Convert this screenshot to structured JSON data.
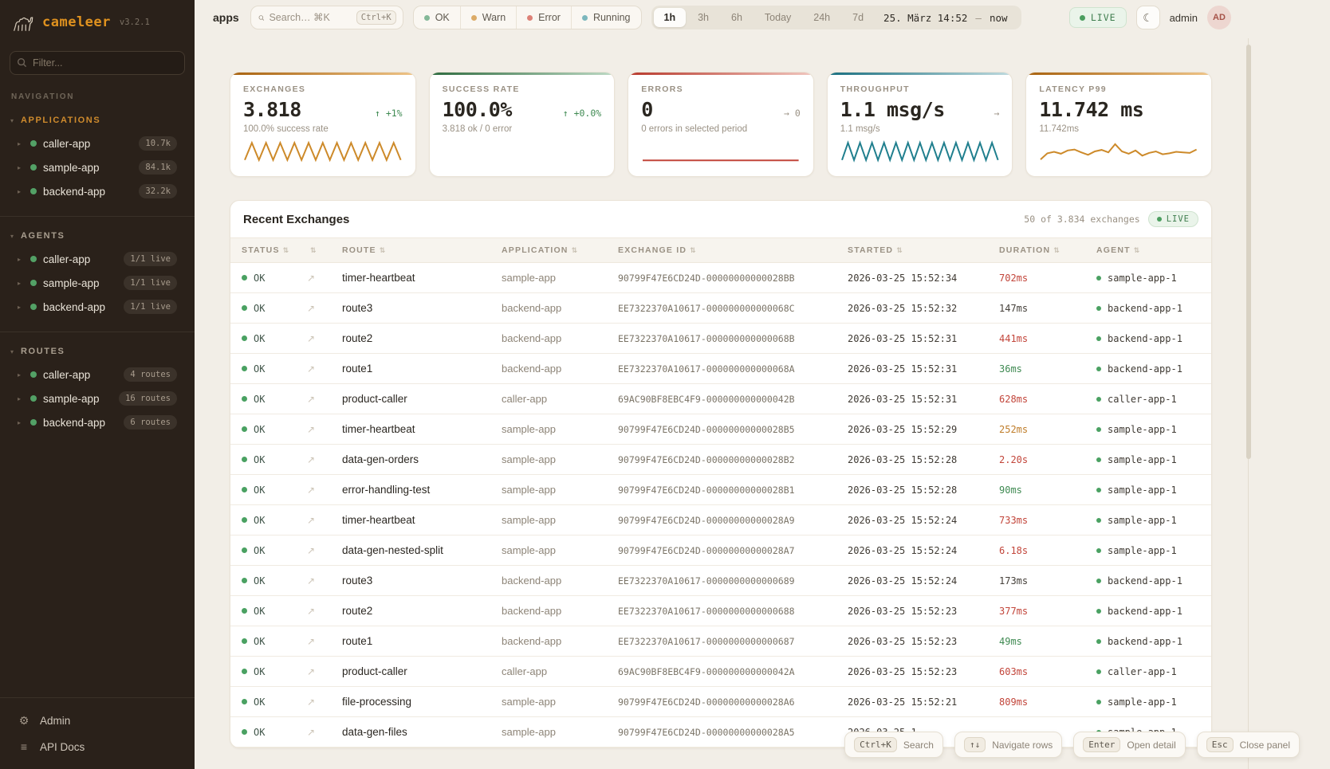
{
  "app": {
    "name": "cameleer",
    "version": "v3.2.1"
  },
  "sidebar": {
    "filter_placeholder": "Filter...",
    "navigation_label": "NAVIGATION",
    "sections": [
      {
        "label": "APPLICATIONS",
        "accent": true,
        "items": [
          {
            "name": "caller-app",
            "badge": "10.7k"
          },
          {
            "name": "sample-app",
            "badge": "84.1k"
          },
          {
            "name": "backend-app",
            "badge": "32.2k"
          }
        ]
      },
      {
        "label": "AGENTS",
        "accent": false,
        "items": [
          {
            "name": "caller-app",
            "badge": "1/1 live"
          },
          {
            "name": "sample-app",
            "badge": "1/1 live"
          },
          {
            "name": "backend-app",
            "badge": "1/1 live"
          }
        ]
      },
      {
        "label": "ROUTES",
        "accent": false,
        "items": [
          {
            "name": "caller-app",
            "badge": "4 routes"
          },
          {
            "name": "sample-app",
            "badge": "16 routes"
          },
          {
            "name": "backend-app",
            "badge": "6 routes"
          }
        ]
      }
    ],
    "footer": [
      {
        "label": "Admin",
        "icon": "gear"
      },
      {
        "label": "API Docs",
        "icon": "menu"
      }
    ]
  },
  "topbar": {
    "breadcrumb": "apps",
    "search": {
      "placeholder": "Search… ⌘K",
      "kbd": "Ctrl+K"
    },
    "status_filters": [
      {
        "label": "OK",
        "color": "#84b898"
      },
      {
        "label": "Warn",
        "color": "#dcab67"
      },
      {
        "label": "Error",
        "color": "#dd8177"
      },
      {
        "label": "Running",
        "color": "#7cb7bd"
      }
    ],
    "ranges": [
      "1h",
      "3h",
      "6h",
      "Today",
      "24h",
      "7d"
    ],
    "active_range": "1h",
    "range_start": "25. März 14:52",
    "range_sep": "—",
    "range_end": "now",
    "live_label": "LIVE",
    "user": "admin",
    "avatar_initials": "AD"
  },
  "cards": [
    {
      "label": "EXCHANGES",
      "value": "3.818",
      "delta": "↑ +1%",
      "delta_tone": "up",
      "subtitle": "100.0% success rate",
      "accent_from": "#a8620f",
      "accent_to": "#eec488",
      "spark_color": "#cd8a2a",
      "spark": [
        0.95,
        0.05,
        0.95,
        0.05,
        0.95,
        0.05,
        0.95,
        0.05,
        0.95,
        0.05,
        0.95,
        0.05,
        0.95,
        0.05,
        0.95,
        0.05,
        0.95,
        0.05,
        0.95,
        0.05,
        0.95,
        0.05,
        0.95
      ]
    },
    {
      "label": "SUCCESS RATE",
      "value": "100.0%",
      "delta": "↑ +0.0%",
      "delta_tone": "up",
      "subtitle": "3.818 ok / 0 error",
      "accent_from": "#2e6b3f",
      "accent_to": "#bdd9c4",
      "spark_color": "",
      "spark": []
    },
    {
      "label": "ERRORS",
      "value": "0",
      "delta": "→ 0",
      "delta_tone": "flat",
      "subtitle": "0 errors in selected period",
      "accent_from": "#b8392c",
      "accent_to": "#f0c6be",
      "spark_color": "#c2453a",
      "spark": [
        0.97,
        0.97
      ]
    },
    {
      "label": "THROUGHPUT",
      "value": "1.1 msg/s",
      "delta": "→",
      "delta_tone": "flat",
      "subtitle": "1.1 msg/s",
      "accent_from": "#196f80",
      "accent_to": "#bfdade",
      "spark_color": "#207f8e",
      "spark": [
        0.95,
        0.05,
        0.95,
        0.05,
        0.95,
        0.05,
        0.95,
        0.05,
        0.95,
        0.05,
        0.95,
        0.05,
        0.95,
        0.05,
        0.95,
        0.05,
        0.95,
        0.05,
        0.95,
        0.05,
        0.95,
        0.05,
        0.95,
        0.05,
        0.95,
        0.05,
        0.95
      ]
    },
    {
      "label": "LATENCY P99",
      "value": "11.742 ms",
      "delta": "",
      "delta_tone": "flat",
      "subtitle": "11.742ms",
      "accent_from": "#a8620f",
      "accent_to": "#eec488",
      "spark_color": "#cd8a2a",
      "spark": [
        0.92,
        0.6,
        0.52,
        0.62,
        0.45,
        0.4,
        0.55,
        0.68,
        0.5,
        0.42,
        0.55,
        0.12,
        0.5,
        0.62,
        0.45,
        0.72,
        0.58,
        0.5,
        0.65,
        0.6,
        0.52,
        0.55,
        0.58,
        0.4
      ]
    }
  ],
  "table": {
    "title": "Recent Exchanges",
    "count_text": "50 of 3.834 exchanges",
    "live_label": "LIVE",
    "columns": [
      "STATUS",
      "",
      "ROUTE",
      "APPLICATION",
      "EXCHANGE ID",
      "STARTED",
      "DURATION",
      "AGENT"
    ],
    "rows": [
      {
        "status": "OK",
        "route": "timer-heartbeat",
        "app": "sample-app",
        "id": "90799F47E6CD24D-00000000000028BB",
        "started": "2026-03-25 15:52:34",
        "duration": "702ms",
        "duration_tone": "red",
        "agent": "sample-app-1"
      },
      {
        "status": "OK",
        "route": "route3",
        "app": "backend-app",
        "id": "EE7322370A10617-000000000000068C",
        "started": "2026-03-25 15:52:32",
        "duration": "147ms",
        "duration_tone": "neutral",
        "agent": "backend-app-1"
      },
      {
        "status": "OK",
        "route": "route2",
        "app": "backend-app",
        "id": "EE7322370A10617-000000000000068B",
        "started": "2026-03-25 15:52:31",
        "duration": "441ms",
        "duration_tone": "red",
        "agent": "backend-app-1"
      },
      {
        "status": "OK",
        "route": "route1",
        "app": "backend-app",
        "id": "EE7322370A10617-000000000000068A",
        "started": "2026-03-25 15:52:31",
        "duration": "36ms",
        "duration_tone": "green",
        "agent": "backend-app-1"
      },
      {
        "status": "OK",
        "route": "product-caller",
        "app": "caller-app",
        "id": "69AC90BF8EBC4F9-000000000000042B",
        "started": "2026-03-25 15:52:31",
        "duration": "628ms",
        "duration_tone": "red",
        "agent": "caller-app-1"
      },
      {
        "status": "OK",
        "route": "timer-heartbeat",
        "app": "sample-app",
        "id": "90799F47E6CD24D-00000000000028B5",
        "started": "2026-03-25 15:52:29",
        "duration": "252ms",
        "duration_tone": "amber",
        "agent": "sample-app-1"
      },
      {
        "status": "OK",
        "route": "data-gen-orders",
        "app": "sample-app",
        "id": "90799F47E6CD24D-00000000000028B2",
        "started": "2026-03-25 15:52:28",
        "duration": "2.20s",
        "duration_tone": "red",
        "agent": "sample-app-1"
      },
      {
        "status": "OK",
        "route": "error-handling-test",
        "app": "sample-app",
        "id": "90799F47E6CD24D-00000000000028B1",
        "started": "2026-03-25 15:52:28",
        "duration": "90ms",
        "duration_tone": "green",
        "agent": "sample-app-1"
      },
      {
        "status": "OK",
        "route": "timer-heartbeat",
        "app": "sample-app",
        "id": "90799F47E6CD24D-00000000000028A9",
        "started": "2026-03-25 15:52:24",
        "duration": "733ms",
        "duration_tone": "red",
        "agent": "sample-app-1"
      },
      {
        "status": "OK",
        "route": "data-gen-nested-split",
        "app": "sample-app",
        "id": "90799F47E6CD24D-00000000000028A7",
        "started": "2026-03-25 15:52:24",
        "duration": "6.18s",
        "duration_tone": "red",
        "agent": "sample-app-1"
      },
      {
        "status": "OK",
        "route": "route3",
        "app": "backend-app",
        "id": "EE7322370A10617-0000000000000689",
        "started": "2026-03-25 15:52:24",
        "duration": "173ms",
        "duration_tone": "neutral",
        "agent": "backend-app-1"
      },
      {
        "status": "OK",
        "route": "route2",
        "app": "backend-app",
        "id": "EE7322370A10617-0000000000000688",
        "started": "2026-03-25 15:52:23",
        "duration": "377ms",
        "duration_tone": "red",
        "agent": "backend-app-1"
      },
      {
        "status": "OK",
        "route": "route1",
        "app": "backend-app",
        "id": "EE7322370A10617-0000000000000687",
        "started": "2026-03-25 15:52:23",
        "duration": "49ms",
        "duration_tone": "green",
        "agent": "backend-app-1"
      },
      {
        "status": "OK",
        "route": "product-caller",
        "app": "caller-app",
        "id": "69AC90BF8EBC4F9-000000000000042A",
        "started": "2026-03-25 15:52:23",
        "duration": "603ms",
        "duration_tone": "red",
        "agent": "caller-app-1"
      },
      {
        "status": "OK",
        "route": "file-processing",
        "app": "sample-app",
        "id": "90799F47E6CD24D-00000000000028A6",
        "started": "2026-03-25 15:52:21",
        "duration": "809ms",
        "duration_tone": "red",
        "agent": "sample-app-1"
      },
      {
        "status": "OK",
        "route": "data-gen-files",
        "app": "sample-app",
        "id": "90799F47E6CD24D-00000000000028A5",
        "started": "2026-03-25 1",
        "duration": "",
        "duration_tone": "neutral",
        "agent": "sample-app-1"
      }
    ]
  },
  "hints": [
    {
      "key": "Ctrl+K",
      "label": "Search"
    },
    {
      "key": "↑↓",
      "label": "Navigate rows"
    },
    {
      "key": "Enter",
      "label": "Open detail"
    },
    {
      "key": "Esc",
      "label": "Close panel"
    }
  ]
}
